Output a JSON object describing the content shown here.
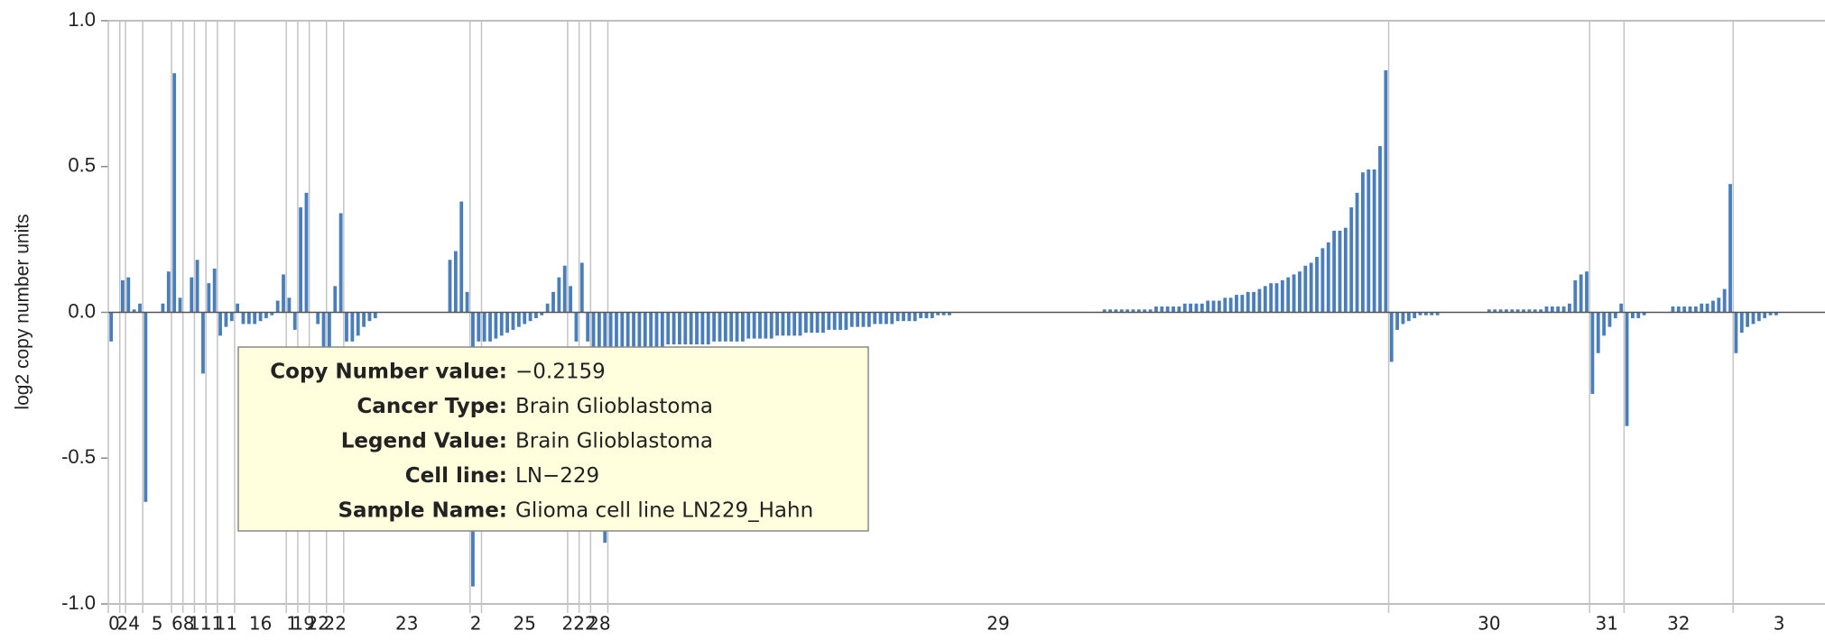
{
  "chart_data": {
    "type": "bar",
    "y_label": "log2 copy number units",
    "color": "#4a7ebb",
    "ylim": [
      -1,
      1
    ],
    "yticks": [
      {
        "value": -1,
        "label": "-1.0"
      },
      {
        "value": -0.5,
        "label": "-0.5"
      },
      {
        "value": 0,
        "label": "0.0"
      },
      {
        "value": 0.5,
        "label": "0.5"
      },
      {
        "value": 1,
        "label": "1.0"
      }
    ],
    "groups": [
      {
        "label": "0",
        "values": [
          -0.1,
          0.0
        ]
      },
      {
        "label": "2",
        "values": [
          0.11
        ]
      },
      {
        "label": "4",
        "values": [
          0.12,
          0.01,
          0.03
        ]
      },
      {
        "label": "5",
        "values": [
          -0.65,
          0.0,
          0.0,
          0.03,
          0.14
        ]
      },
      {
        "label": "6",
        "values": [
          0.82,
          0.05
        ]
      },
      {
        "label": "8",
        "values": [
          0.0,
          0.12
        ]
      },
      {
        "label": "11",
        "values": [
          0.18,
          -0.21
        ]
      },
      {
        "label": "11",
        "values": [
          0.1,
          0.15
        ]
      },
      {
        "label": "11",
        "values": [
          -0.08,
          -0.05,
          -0.03
        ]
      },
      {
        "label": "16",
        "values": [
          0.03,
          -0.04,
          -0.04,
          -0.04,
          -0.03,
          -0.02,
          -0.01,
          0.04,
          0.13
        ]
      },
      {
        "label": "1",
        "values": [
          0.05,
          -0.06
        ]
      },
      {
        "label": "19",
        "values": [
          0.36,
          0.41
        ]
      },
      {
        "label": "22",
        "values": [
          0.0,
          -0.04,
          -0.12
        ]
      },
      {
        "label": "22",
        "values": [
          -0.12,
          0.09,
          0.34
        ]
      },
      {
        "label": "23",
        "values": [
          -0.1,
          -0.1,
          -0.08,
          -0.05,
          -0.03,
          -0.02,
          0,
          0,
          0,
          0,
          0,
          0,
          0,
          0,
          0,
          0,
          0,
          0,
          0.18,
          0.21,
          0.38,
          0.07
        ]
      },
      {
        "label": "2",
        "values": [
          -0.94,
          -0.1
        ]
      },
      {
        "label": "25",
        "values": [
          -0.1,
          -0.1,
          -0.09,
          -0.08,
          -0.07,
          -0.06,
          -0.05,
          -0.04,
          -0.03,
          -0.02,
          -0.01,
          0.03,
          0.07,
          0.12,
          0.16
        ]
      },
      {
        "label": "22",
        "values": [
          0.09,
          -0.1
        ]
      },
      {
        "label": "22",
        "values": [
          0.17,
          -0.1
        ]
      },
      {
        "label": "28",
        "values": [
          -0.12,
          -0.12,
          -0.79
        ]
      },
      {
        "label": "29",
        "values": [
          -0.12,
          -0.12,
          -0.12,
          -0.12,
          -0.12,
          -0.12,
          -0.12,
          -0.12,
          -0.12,
          -0.12,
          -0.11,
          -0.11,
          -0.11,
          -0.11,
          -0.11,
          -0.11,
          -0.11,
          -0.11,
          -0.1,
          -0.1,
          -0.1,
          -0.1,
          -0.1,
          -0.1,
          -0.09,
          -0.09,
          -0.09,
          -0.09,
          -0.09,
          -0.08,
          -0.08,
          -0.08,
          -0.08,
          -0.08,
          -0.07,
          -0.07,
          -0.07,
          -0.07,
          -0.06,
          -0.06,
          -0.06,
          -0.06,
          -0.05,
          -0.05,
          -0.05,
          -0.05,
          -0.04,
          -0.04,
          -0.04,
          -0.04,
          -0.03,
          -0.03,
          -0.03,
          -0.03,
          -0.02,
          -0.02,
          -0.02,
          -0.01,
          -0.01,
          -0.01,
          0,
          0,
          0,
          0,
          0,
          0,
          0,
          0,
          0,
          0,
          0,
          0,
          0,
          0,
          0,
          0,
          0,
          0,
          0,
          0,
          0,
          0,
          0,
          0,
          0,
          0,
          0.01,
          0.01,
          0.01,
          0.01,
          0.01,
          0.01,
          0.01,
          0.01,
          0.01,
          0.02,
          0.02,
          0.02,
          0.02,
          0.02,
          0.03,
          0.03,
          0.03,
          0.03,
          0.04,
          0.04,
          0.04,
          0.05,
          0.05,
          0.06,
          0.06,
          0.07,
          0.07,
          0.08,
          0.09,
          0.1,
          0.1,
          0.11,
          0.12,
          0.13,
          0.14,
          0.16,
          0.17,
          0.19,
          0.22,
          0.24,
          0.28,
          0.28,
          0.29,
          0.36,
          0.41,
          0.48,
          0.49,
          0.49,
          0.57,
          0.83
        ]
      },
      {
        "label": "30",
        "values": [
          -0.17,
          -0.06,
          -0.04,
          -0.03,
          -0.02,
          -0.01,
          -0.01,
          -0.01,
          -0.01,
          0,
          0,
          0,
          0,
          0,
          0,
          0,
          0,
          0.01,
          0.01,
          0.01,
          0.01,
          0.01,
          0.01,
          0.01,
          0.01,
          0.01,
          0.01,
          0.02,
          0.02,
          0.02,
          0.02,
          0.03,
          0.11,
          0.13,
          0.14
        ]
      },
      {
        "label": "31",
        "values": [
          -0.28,
          -0.14,
          -0.08,
          -0.05,
          -0.02,
          0.03
        ]
      },
      {
        "label": "32",
        "values": [
          -0.39,
          -0.02,
          -0.02,
          -0.01,
          0,
          0,
          0,
          0,
          0.02,
          0.02,
          0.02,
          0.02,
          0.02,
          0.03,
          0.03,
          0.04,
          0.05,
          0.08,
          0.44
        ]
      },
      {
        "label": "3",
        "values": [
          -0.14,
          -0.07,
          -0.05,
          -0.04,
          -0.03,
          -0.02,
          -0.01,
          -0.01,
          0,
          0,
          0,
          0,
          0,
          0,
          0,
          0
        ]
      }
    ]
  },
  "tooltip": {
    "rows": [
      {
        "label": "Copy Number value:",
        "value": "−0.2159"
      },
      {
        "label": "Cancer Type:",
        "value": "Brain Glioblastoma"
      },
      {
        "label": "Legend Value:",
        "value": "Brain Glioblastoma"
      },
      {
        "label": "Cell line:",
        "value": "LN−229"
      },
      {
        "label": "Sample Name:",
        "value": "Glioma cell line LN229_Hahn"
      }
    ]
  }
}
